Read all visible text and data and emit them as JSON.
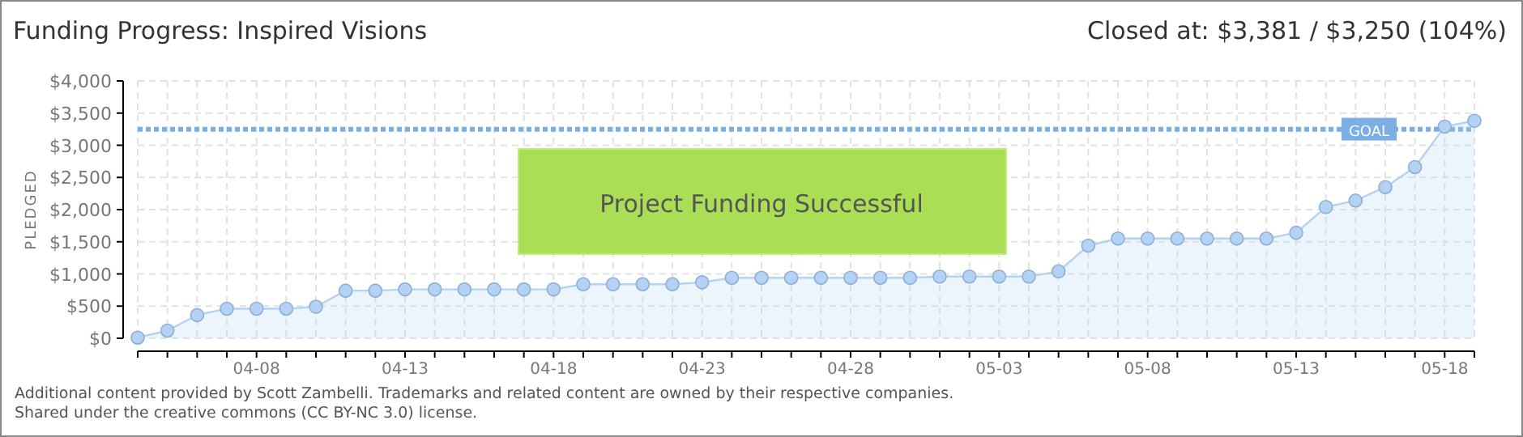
{
  "chart_data": {
    "type": "area",
    "title": "Funding Progress: Inspired Visions",
    "subtitle": "Closed at: $3,381 / $3,250 (104%)",
    "ylabel": "PLEDGED",
    "annotations": [
      "Project Funding Successful",
      "Additional content provided by Scott Zambelli. Trademarks and related content are owned by their respective companies.",
      "Shared under the creative commons (CC BY-NC 3.0) license."
    ],
    "x": [
      "--04-04",
      "--04-05",
      "--04-06",
      "--04-07",
      "--04-08",
      "--04-09",
      "--04-10",
      "--04-11",
      "--04-12",
      "--04-13",
      "--04-14",
      "--04-15",
      "--04-16",
      "--04-17",
      "--04-18",
      "--04-19",
      "--04-20",
      "--04-21",
      "--04-22",
      "--04-23",
      "--04-24",
      "--04-25",
      "--04-26",
      "--04-27",
      "--04-28",
      "--04-29",
      "--04-30",
      "--05-01",
      "--05-02",
      "--05-03",
      "--05-04",
      "--05-05",
      "--05-06",
      "--05-07",
      "--05-08",
      "--05-09",
      "--05-10",
      "--05-11",
      "--05-12",
      "--05-13",
      "--05-14",
      "--05-15",
      "--05-16",
      "--05-17",
      "--05-18",
      "--05-19"
    ],
    "series": [
      {
        "color": "#b4d2f3",
        "values": [
          10,
          120,
          360,
          460,
          460,
          460,
          490,
          740,
          740,
          760,
          760,
          760,
          760,
          760,
          760,
          840,
          840,
          840,
          840,
          870,
          940,
          940,
          940,
          940,
          940,
          940,
          940,
          960,
          960,
          960,
          960,
          1040,
          1440,
          1550,
          1550,
          1550,
          1550,
          1550,
          1550,
          1640,
          2040,
          2140,
          2350,
          2660,
          3290,
          3381
        ]
      }
    ],
    "xlim": [
      "--04-04",
      "--05-19"
    ],
    "xticks": [
      {
        "value": "--04-04",
        "label": null
      },
      {
        "value": "--04-05",
        "label": null
      },
      {
        "value": "--04-06",
        "label": null
      },
      {
        "value": "--04-07",
        "label": null
      },
      {
        "value": "--04-08",
        "label": "04-08"
      },
      {
        "value": "--04-09",
        "label": null
      },
      {
        "value": "--04-10",
        "label": null
      },
      {
        "value": "--04-11",
        "label": null
      },
      {
        "value": "--04-12",
        "label": null
      },
      {
        "value": "--04-13",
        "label": "04-13"
      },
      {
        "value": "--04-14",
        "label": null
      },
      {
        "value": "--04-15",
        "label": null
      },
      {
        "value": "--04-16",
        "label": null
      },
      {
        "value": "--04-17",
        "label": null
      },
      {
        "value": "--04-18",
        "label": "04-18"
      },
      {
        "value": "--04-19",
        "label": null
      },
      {
        "value": "--04-20",
        "label": null
      },
      {
        "value": "--04-21",
        "label": null
      },
      {
        "value": "--04-22",
        "label": null
      },
      {
        "value": "--04-23",
        "label": "04-23"
      },
      {
        "value": "--04-24",
        "label": null
      },
      {
        "value": "--04-25",
        "label": null
      },
      {
        "value": "--04-26",
        "label": null
      },
      {
        "value": "--04-27",
        "label": null
      },
      {
        "value": "--04-28",
        "label": "04-28"
      },
      {
        "value": "--04-29",
        "label": null
      },
      {
        "value": "--04-30",
        "label": null
      },
      {
        "value": "--05-01",
        "label": null
      },
      {
        "value": "--05-02",
        "label": null
      },
      {
        "value": "--05-03",
        "label": "05-03"
      },
      {
        "value": "--05-04",
        "label": null
      },
      {
        "value": "--05-05",
        "label": null
      },
      {
        "value": "--05-06",
        "label": null
      },
      {
        "value": "--05-07",
        "label": null
      },
      {
        "value": "--05-08",
        "label": "05-08"
      },
      {
        "value": "--05-09",
        "label": null
      },
      {
        "value": "--05-10",
        "label": null
      },
      {
        "value": "--05-11",
        "label": null
      },
      {
        "value": "--05-12",
        "label": null
      },
      {
        "value": "--05-13",
        "label": "05-13"
      },
      {
        "value": "--05-14",
        "label": null
      },
      {
        "value": "--05-15",
        "label": null
      },
      {
        "value": "--05-16",
        "label": null
      },
      {
        "value": "--05-17",
        "label": null
      },
      {
        "value": "--05-18",
        "label": "05-18"
      },
      {
        "value": "--05-19",
        "label": null
      }
    ],
    "ylim": [
      0,
      4000
    ],
    "yticks": [
      {
        "value": 0,
        "label": "$0"
      },
      {
        "value": 500,
        "label": "$500"
      },
      {
        "value": 1000,
        "label": "$1,000"
      },
      {
        "value": 1500,
        "label": "$1,500"
      },
      {
        "value": 2000,
        "label": "$2,000"
      },
      {
        "value": 2500,
        "label": "$2,500"
      },
      {
        "value": 3000,
        "label": "$3,000"
      },
      {
        "value": 3500,
        "label": "$3,500"
      },
      {
        "value": 4000,
        "label": "$4,000"
      }
    ],
    "ref_lines": [
      {
        "axis": "y",
        "value": 3250,
        "label": "GOAL",
        "color": "#7aaee5",
        "line_style": "dotted"
      }
    ],
    "grid": true,
    "marker": "circle",
    "line_style": "solid"
  }
}
